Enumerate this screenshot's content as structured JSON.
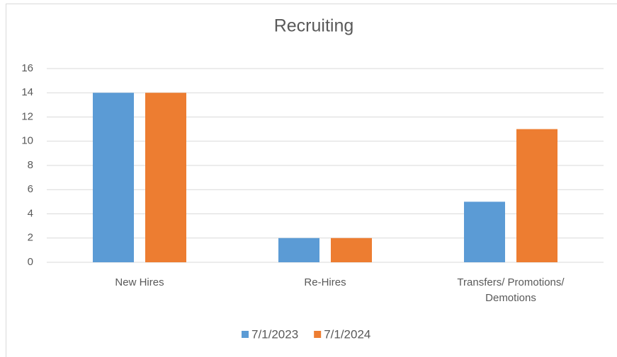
{
  "chart_data": {
    "type": "bar",
    "title": "Recruiting",
    "categories": [
      "New Hires",
      "Re-Hires",
      "Transfers/ Promotions/ Demotions"
    ],
    "series": [
      {
        "name": "7/1/2023",
        "color": "#5b9bd5",
        "values": [
          14,
          2,
          5
        ]
      },
      {
        "name": "7/1/2024",
        "color": "#ed7d31",
        "values": [
          14,
          2,
          11
        ]
      }
    ],
    "ylim": [
      0,
      16
    ],
    "yticks": [
      0,
      2,
      4,
      6,
      8,
      10,
      12,
      14,
      16
    ],
    "grid": true,
    "legend": "bottom"
  }
}
